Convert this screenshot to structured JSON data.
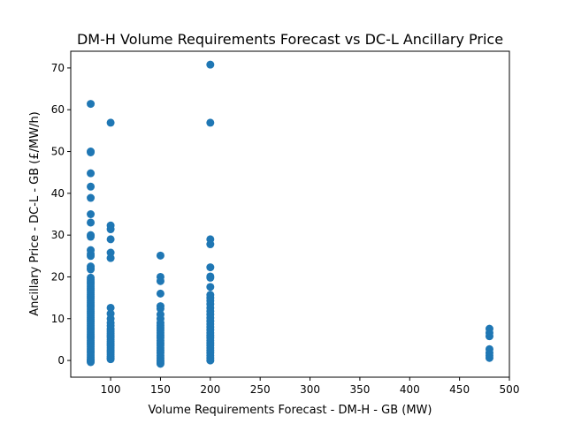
{
  "chart_data": {
    "type": "scatter",
    "title": "DM-H Volume Requirements Forecast vs DC-L Ancillary Price",
    "xlabel": "Volume Requirements Forecast - DM-H - GB (MW)",
    "ylabel": "Ancillary Price - DC-L - GB (£/MW/h)",
    "xlim": [
      60,
      500
    ],
    "ylim": [
      -4,
      74
    ],
    "x_ticks": [
      100,
      150,
      200,
      250,
      300,
      350,
      400,
      450,
      500
    ],
    "y_ticks": [
      0,
      10,
      20,
      30,
      40,
      50,
      60,
      70
    ],
    "grid": false,
    "marker_color": "#1f77b4",
    "series": [
      {
        "points": [
          [
            80,
            61.4
          ],
          [
            80,
            50
          ],
          [
            80,
            49.8
          ],
          [
            80,
            44.8
          ],
          [
            80,
            41.6
          ],
          [
            80,
            38.9
          ],
          [
            80,
            35
          ],
          [
            80,
            33
          ],
          [
            80,
            30
          ],
          [
            80,
            29.6
          ],
          [
            80,
            26.4
          ],
          [
            80,
            25.5
          ],
          [
            80,
            25
          ],
          [
            80,
            22.5
          ],
          [
            80,
            22
          ],
          [
            80,
            21.8
          ],
          [
            80,
            19.8
          ],
          [
            80,
            19.3
          ],
          [
            80,
            18.8
          ],
          [
            80,
            18.3
          ],
          [
            80,
            17.8
          ],
          [
            80,
            17.3
          ],
          [
            80,
            16.8
          ],
          [
            80,
            16.3
          ],
          [
            80,
            15.8
          ],
          [
            80,
            15.3
          ],
          [
            80,
            14.8
          ],
          [
            80,
            14.3
          ],
          [
            80,
            13.8
          ],
          [
            80,
            13.3
          ],
          [
            80,
            12.8
          ],
          [
            80,
            12.3
          ],
          [
            80,
            11.8
          ],
          [
            80,
            11.3
          ],
          [
            80,
            10.8
          ],
          [
            80,
            10.3
          ],
          [
            80,
            9.8
          ],
          [
            80,
            9.3
          ],
          [
            80,
            8.8
          ],
          [
            80,
            8.3
          ],
          [
            80,
            7.8
          ],
          [
            80,
            7.3
          ],
          [
            80,
            6.8
          ],
          [
            80,
            6.3
          ],
          [
            80,
            5.8
          ],
          [
            80,
            5.3
          ],
          [
            80,
            4.8
          ],
          [
            80,
            4.3
          ],
          [
            80,
            3.8
          ],
          [
            80,
            3.3
          ],
          [
            80,
            2.8
          ],
          [
            80,
            2.3
          ],
          [
            80,
            1.8
          ],
          [
            80,
            1.3
          ],
          [
            80,
            0.8
          ],
          [
            80,
            0.3
          ],
          [
            80,
            0
          ],
          [
            80,
            -0.2
          ],
          [
            80,
            -0.4
          ],
          [
            100,
            56.9
          ],
          [
            100,
            32.3
          ],
          [
            100,
            31.4
          ],
          [
            100,
            29
          ],
          [
            100,
            25.8
          ],
          [
            100,
            24.5
          ],
          [
            100,
            12.6
          ],
          [
            100,
            11.2
          ],
          [
            100,
            10
          ],
          [
            100,
            9
          ],
          [
            100,
            8.3
          ],
          [
            100,
            7.5
          ],
          [
            100,
            7
          ],
          [
            100,
            6.5
          ],
          [
            100,
            6
          ],
          [
            100,
            5.5
          ],
          [
            100,
            5
          ],
          [
            100,
            4.5
          ],
          [
            100,
            4
          ],
          [
            100,
            3.5
          ],
          [
            100,
            3
          ],
          [
            100,
            2.5
          ],
          [
            100,
            2
          ],
          [
            100,
            1.5
          ],
          [
            100,
            1
          ],
          [
            100,
            0.6
          ],
          [
            100,
            0.3
          ],
          [
            150,
            25.1
          ],
          [
            150,
            20
          ],
          [
            150,
            19
          ],
          [
            150,
            16
          ],
          [
            150,
            13
          ],
          [
            150,
            12.4
          ],
          [
            150,
            11
          ],
          [
            150,
            10
          ],
          [
            150,
            9
          ],
          [
            150,
            8.4
          ],
          [
            150,
            7.8
          ],
          [
            150,
            7.2
          ],
          [
            150,
            6.6
          ],
          [
            150,
            6
          ],
          [
            150,
            5.4
          ],
          [
            150,
            4.8
          ],
          [
            150,
            4.2
          ],
          [
            150,
            3.6
          ],
          [
            150,
            3
          ],
          [
            150,
            2.4
          ],
          [
            150,
            1.8
          ],
          [
            150,
            1.2
          ],
          [
            150,
            0.6
          ],
          [
            150,
            0
          ],
          [
            150,
            -0.4
          ],
          [
            150,
            -0.8
          ],
          [
            200,
            70.8
          ],
          [
            200,
            56.9
          ],
          [
            200,
            29
          ],
          [
            200,
            27.8
          ],
          [
            200,
            22.3
          ],
          [
            200,
            20.1
          ],
          [
            200,
            19.8
          ],
          [
            200,
            17.6
          ],
          [
            200,
            15.7
          ],
          [
            200,
            15
          ],
          [
            200,
            14.3
          ],
          [
            200,
            13.5
          ],
          [
            200,
            12.6
          ],
          [
            200,
            11.8
          ],
          [
            200,
            11
          ],
          [
            200,
            10.2
          ],
          [
            200,
            9.4
          ],
          [
            200,
            8.7
          ],
          [
            200,
            8
          ],
          [
            200,
            7.3
          ],
          [
            200,
            6.6
          ],
          [
            200,
            6
          ],
          [
            200,
            5.4
          ],
          [
            200,
            4.8
          ],
          [
            200,
            4.2
          ],
          [
            200,
            3.6
          ],
          [
            200,
            3
          ],
          [
            200,
            2.4
          ],
          [
            200,
            1.8
          ],
          [
            200,
            1.2
          ],
          [
            200,
            0.6
          ],
          [
            200,
            0
          ],
          [
            480,
            7.6
          ],
          [
            480,
            6.6
          ],
          [
            480,
            5.8
          ],
          [
            480,
            2.7
          ],
          [
            480,
            1.8
          ],
          [
            480,
            1.2
          ],
          [
            480,
            0.6
          ]
        ]
      }
    ]
  }
}
